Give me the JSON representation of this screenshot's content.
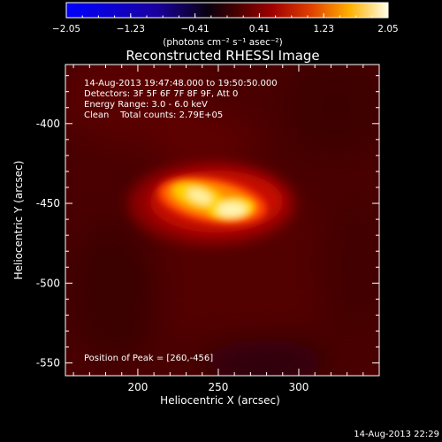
{
  "colorbar": {
    "tick_labels": [
      "-2.05",
      "-1.23",
      "-0.41",
      "0.41",
      "1.23",
      "2.05"
    ],
    "range": [
      -2.05,
      2.05
    ],
    "unit_label": "(photons cm⁻² s⁻¹ asec⁻²)"
  },
  "chart_data": {
    "type": "heatmap",
    "title": "Reconstructed RHESSI Image",
    "xlabel": "Heliocentric X (arcsec)",
    "ylabel": "Heliocentric Y (arcsec)",
    "xlim": [
      155,
      350
    ],
    "ylim": [
      -558,
      -363
    ],
    "x_ticks": [
      "200",
      "250",
      "300"
    ],
    "y_ticks": [
      "-400",
      "-450",
      "-500",
      "-550"
    ],
    "x_tick_values": [
      200,
      250,
      300
    ],
    "y_tick_values": [
      -400,
      -450,
      -500,
      -550
    ],
    "annotations": [
      "14-Aug-2013 19:47:48.000 to 19:50:50.000",
      "Detectors: 3F 5F 6F 7F 8F 9F, Att 0",
      "Energy Range: 3.0 - 6.0 keV",
      "Clean    Total counts: 2.79E+05"
    ],
    "peak_label": "Position of Peak = [260,-456]",
    "peak": [
      260,
      -456
    ]
  },
  "timestamp": "14-Aug-2013 22:29"
}
